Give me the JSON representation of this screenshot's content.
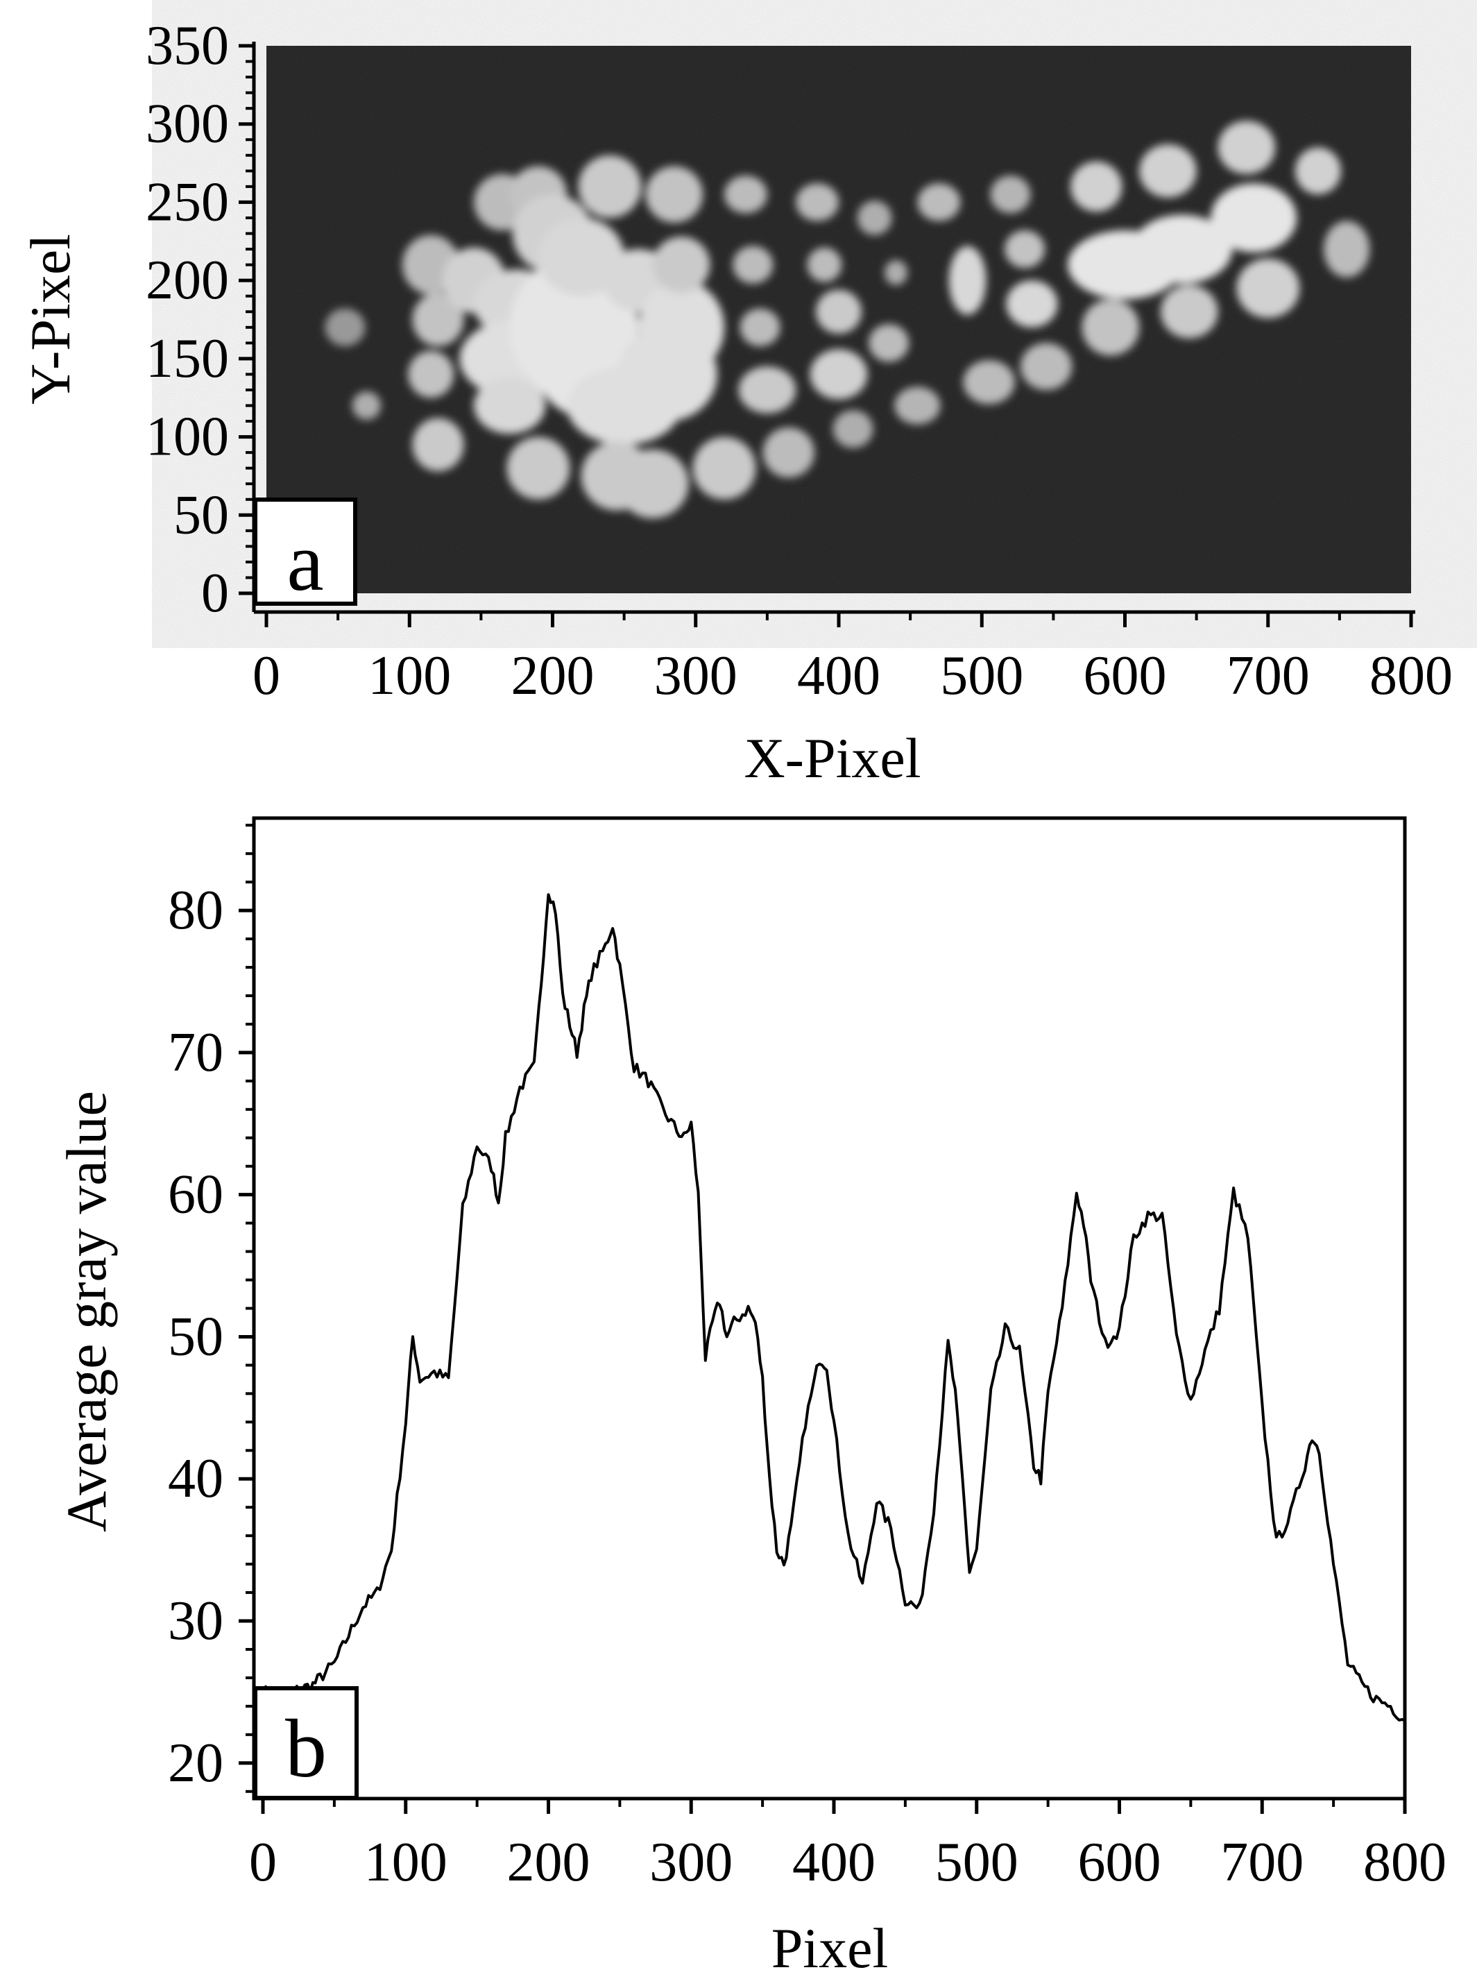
{
  "figure": {
    "panels": [
      {
        "id": "a",
        "label": "a",
        "image_name": "fluorescence-spot-image",
        "xlabel": "X-Pixel",
        "ylabel": "Y-Pixel"
      },
      {
        "id": "b",
        "label": "b",
        "xlabel": "Pixel",
        "ylabel": "Average gray value"
      }
    ]
  },
  "colors": {
    "image_background": "#1e1e1e",
    "spot": "#d2d2d2",
    "line": "#000000",
    "axis": "#000000"
  },
  "chart_data": [
    {
      "type": "heatmap",
      "description_visible": "grayscale image",
      "xlabel": "X-Pixel",
      "ylabel": "Y-Pixel",
      "xlim": [
        0,
        800
      ],
      "ylim": [
        0,
        350
      ],
      "xticks": [
        0,
        100,
        200,
        300,
        400,
        500,
        600,
        700,
        800
      ],
      "yticks": [
        0,
        50,
        100,
        150,
        200,
        250,
        300,
        350
      ],
      "spots": [
        [
          55,
          170,
          14,
          12,
          0.45
        ],
        [
          70,
          120,
          10,
          9,
          0.6
        ],
        [
          115,
          210,
          20,
          19,
          0.7
        ],
        [
          120,
          175,
          18,
          17,
          0.75
        ],
        [
          115,
          140,
          16,
          15,
          0.75
        ],
        [
          120,
          95,
          18,
          17,
          0.8
        ],
        [
          145,
          200,
          22,
          21,
          0.85
        ],
        [
          165,
          250,
          20,
          18,
          0.7
        ],
        [
          190,
          255,
          20,
          18,
          0.75
        ],
        [
          175,
          185,
          30,
          22,
          0.9
        ],
        [
          175,
          150,
          40,
          25,
          0.95
        ],
        [
          170,
          120,
          25,
          18,
          0.9
        ],
        [
          190,
          80,
          22,
          20,
          0.8
        ],
        [
          200,
          230,
          28,
          25,
          0.85
        ],
        [
          215,
          170,
          45,
          45,
          1.0
        ],
        [
          220,
          215,
          30,
          25,
          0.9
        ],
        [
          235,
          140,
          45,
          30,
          1.0
        ],
        [
          240,
          260,
          22,
          20,
          0.8
        ],
        [
          250,
          120,
          40,
          25,
          0.95
        ],
        [
          245,
          75,
          25,
          22,
          0.8
        ],
        [
          260,
          200,
          25,
          20,
          0.9
        ],
        [
          290,
          170,
          30,
          30,
          0.95
        ],
        [
          280,
          140,
          35,
          30,
          0.95
        ],
        [
          285,
          255,
          20,
          18,
          0.75
        ],
        [
          290,
          210,
          20,
          18,
          0.8
        ],
        [
          270,
          70,
          25,
          22,
          0.8
        ],
        [
          320,
          80,
          22,
          20,
          0.8
        ],
        [
          335,
          255,
          15,
          12,
          0.7
        ],
        [
          340,
          210,
          14,
          12,
          0.7
        ],
        [
          345,
          170,
          14,
          12,
          0.7
        ],
        [
          350,
          130,
          20,
          15,
          0.8
        ],
        [
          365,
          90,
          18,
          16,
          0.7
        ],
        [
          385,
          250,
          15,
          12,
          0.7
        ],
        [
          390,
          210,
          12,
          11,
          0.7
        ],
        [
          400,
          180,
          16,
          14,
          0.8
        ],
        [
          400,
          140,
          20,
          16,
          0.85
        ],
        [
          410,
          105,
          14,
          12,
          0.6
        ],
        [
          425,
          240,
          12,
          11,
          0.6
        ],
        [
          435,
          160,
          14,
          12,
          0.7
        ],
        [
          440,
          205,
          8,
          8,
          0.6
        ],
        [
          455,
          120,
          16,
          12,
          0.65
        ],
        [
          470,
          250,
          15,
          12,
          0.7
        ],
        [
          490,
          200,
          13,
          22,
          0.9
        ],
        [
          505,
          135,
          18,
          14,
          0.7
        ],
        [
          520,
          255,
          14,
          12,
          0.65
        ],
        [
          530,
          220,
          14,
          12,
          0.75
        ],
        [
          535,
          185,
          18,
          15,
          0.9
        ],
        [
          545,
          145,
          18,
          15,
          0.7
        ],
        [
          580,
          260,
          18,
          16,
          0.85
        ],
        [
          590,
          170,
          20,
          18,
          0.75
        ],
        [
          600,
          210,
          40,
          22,
          1.0
        ],
        [
          630,
          270,
          20,
          17,
          0.85
        ],
        [
          640,
          220,
          35,
          22,
          1.0
        ],
        [
          645,
          180,
          20,
          17,
          0.8
        ],
        [
          685,
          285,
          20,
          17,
          0.85
        ],
        [
          690,
          240,
          30,
          22,
          1.0
        ],
        [
          700,
          195,
          22,
          19,
          0.85
        ],
        [
          735,
          270,
          16,
          15,
          0.85
        ],
        [
          755,
          220,
          16,
          18,
          0.7
        ]
      ]
    },
    {
      "type": "line",
      "xlabel": "Pixel",
      "ylabel": "Average gray value",
      "xlim": [
        0,
        800
      ],
      "ylim": [
        17.5,
        86.5
      ],
      "xticks": [
        0,
        100,
        200,
        300,
        400,
        500,
        600,
        700,
        800
      ],
      "yticks": [
        20,
        30,
        40,
        50,
        60,
        70,
        80
      ],
      "series": [
        {
          "x": [
            0,
            10,
            20,
            35,
            40,
            50,
            60,
            70,
            80,
            90,
            100,
            105,
            110,
            120,
            130,
            140,
            150,
            160,
            165,
            170,
            180,
            190,
            195,
            200,
            205,
            210,
            215,
            220,
            225,
            230,
            240,
            245,
            250,
            260,
            270,
            280,
            290,
            295,
            300,
            305,
            310,
            315,
            320,
            325,
            330,
            340,
            345,
            350,
            355,
            360,
            365,
            370,
            380,
            390,
            395,
            400,
            410,
            420,
            430,
            440,
            450,
            460,
            470,
            480,
            485,
            490,
            495,
            500,
            510,
            520,
            530,
            540,
            545,
            550,
            560,
            570,
            575,
            580,
            590,
            600,
            610,
            620,
            630,
            640,
            650,
            660,
            670,
            680,
            690,
            700,
            710,
            720,
            730,
            735,
            740,
            750,
            760,
            770,
            780,
            790,
            800
          ],
          "y": [
            25,
            25,
            25,
            25.5,
            26,
            27,
            29,
            31,
            32,
            35,
            44,
            50,
            47,
            47.5,
            47,
            59,
            63.5,
            62,
            59.5,
            64,
            67.5,
            69,
            75,
            81.5,
            80,
            74,
            72,
            70,
            73,
            75.5,
            77.5,
            79,
            76,
            69,
            68,
            66,
            64.5,
            64,
            65,
            60,
            48.5,
            51,
            52.5,
            50,
            51,
            52,
            51,
            47,
            40,
            35,
            34,
            36.5,
            44,
            48.5,
            48,
            44,
            36,
            32.5,
            38.5,
            36.5,
            31.5,
            30.8,
            38,
            49.5,
            46,
            40,
            33.5,
            35,
            46,
            50.5,
            49,
            41,
            40,
            46,
            52,
            60.2,
            58,
            54,
            49.5,
            50.5,
            57,
            58.5,
            58.5,
            50,
            45.5,
            49,
            52,
            60.2,
            57,
            45,
            35.5,
            37.5,
            41,
            43,
            42,
            34,
            27,
            25.5,
            24.5,
            24,
            23
          ]
        }
      ]
    }
  ]
}
